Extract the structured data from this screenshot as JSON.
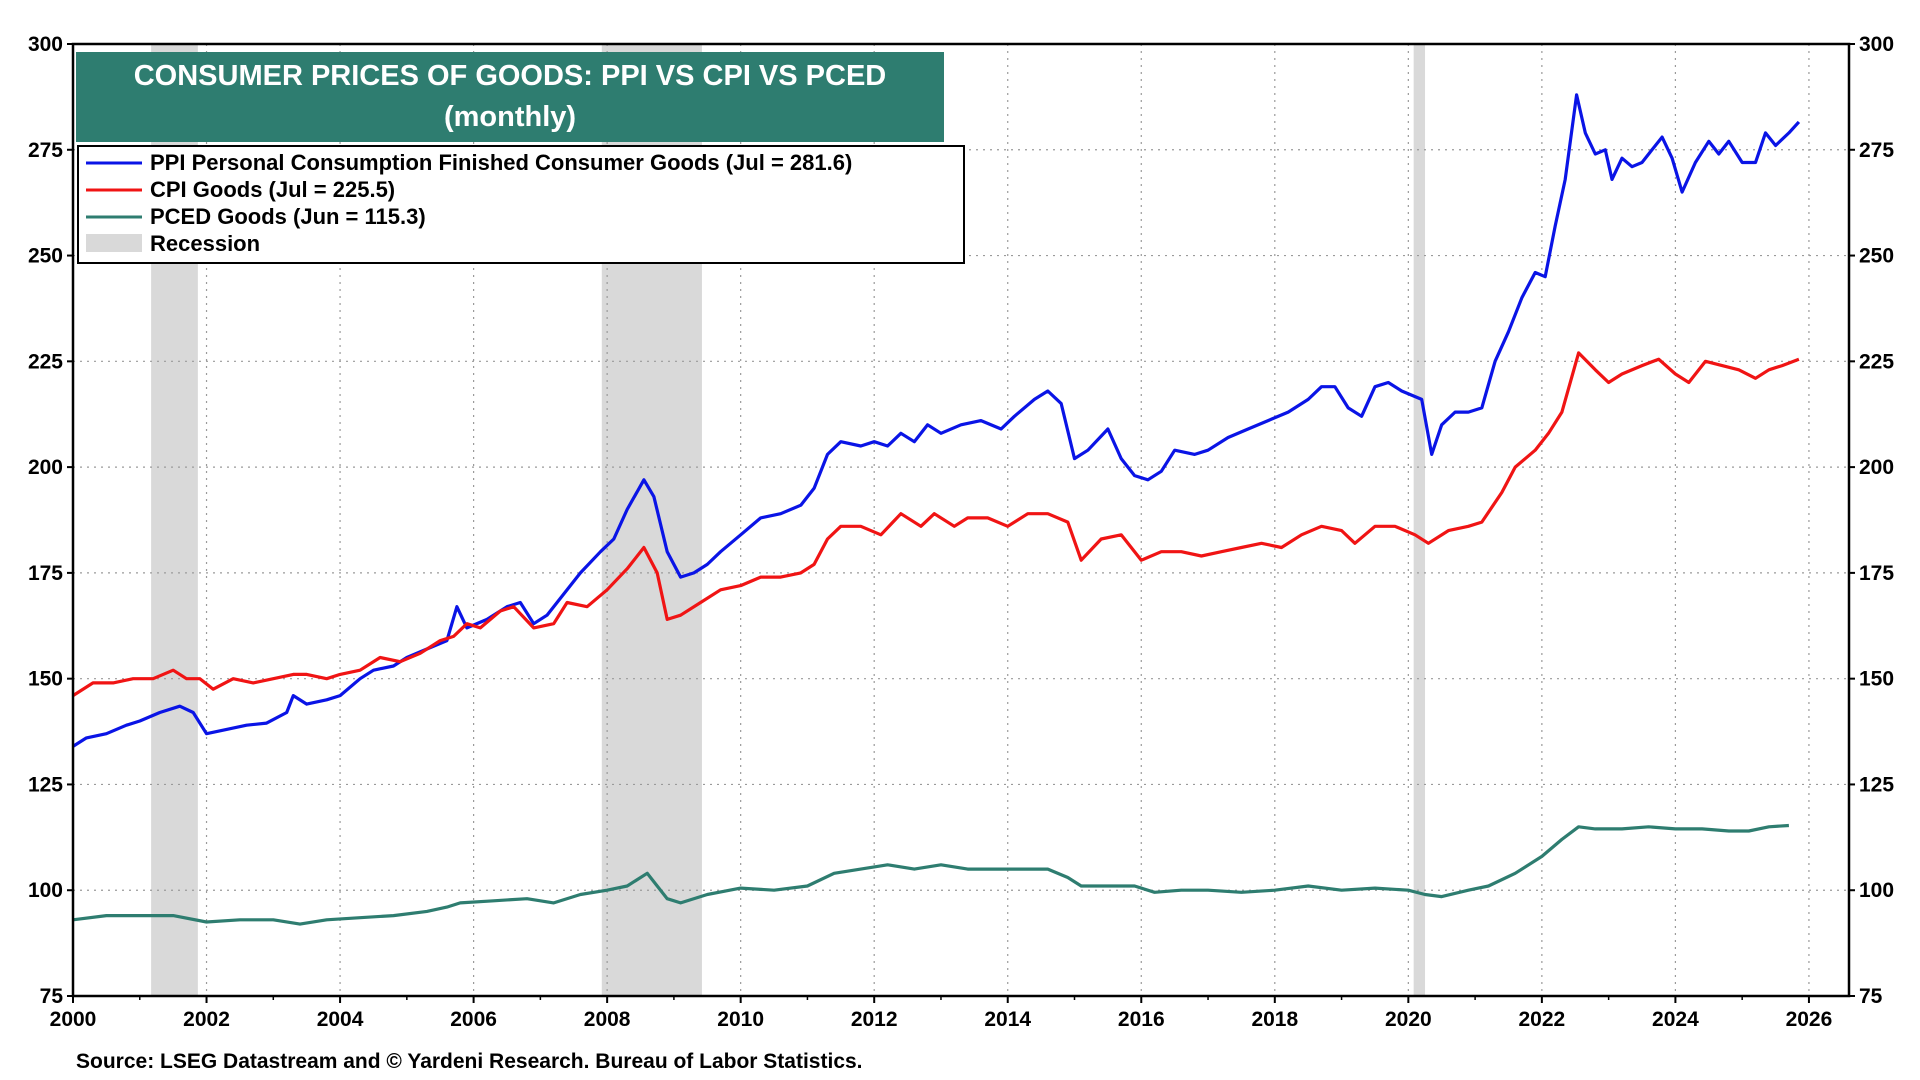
{
  "chart_data": {
    "type": "line",
    "title": "CONSUMER PRICES OF GOODS: PPI VS CPI VS PCED",
    "subtitle": "(monthly)",
    "xlim": [
      2000,
      2026.6
    ],
    "ylim": [
      75,
      300
    ],
    "x_ticks": [
      2000,
      2002,
      2004,
      2006,
      2008,
      2010,
      2012,
      2014,
      2016,
      2018,
      2020,
      2022,
      2024,
      2026
    ],
    "x_tick_labels": [
      "2000",
      "2002",
      "2004",
      "2006",
      "2008",
      "2010",
      "2012",
      "2014",
      "2016",
      "2018",
      "2020",
      "2022",
      "2024",
      "2026"
    ],
    "y_ticks": [
      75,
      100,
      125,
      150,
      175,
      200,
      225,
      250,
      275,
      300
    ],
    "y_tick_labels": [
      "75",
      "100",
      "125",
      "150",
      "175",
      "200",
      "225",
      "250",
      "275",
      "300"
    ],
    "grid": true,
    "legend_position": "top-left",
    "recessions": [
      {
        "start": 2001.17,
        "end": 2001.87
      },
      {
        "start": 2007.92,
        "end": 2009.42
      },
      {
        "start": 2020.08,
        "end": 2020.25
      }
    ],
    "recession_label": "Recession",
    "recession_color": "#d9d9d9",
    "series": [
      {
        "name": "PPI Personal Consumption Finished Consumer Goods (Jul = 281.6)",
        "color": "#0a14e6",
        "points": [
          [
            2000.0,
            134
          ],
          [
            2000.2,
            136
          ],
          [
            2000.5,
            137
          ],
          [
            2000.8,
            139
          ],
          [
            2001.0,
            140
          ],
          [
            2001.3,
            142
          ],
          [
            2001.6,
            143.5
          ],
          [
            2001.8,
            142
          ],
          [
            2002.0,
            137
          ],
          [
            2002.3,
            138
          ],
          [
            2002.6,
            139
          ],
          [
            2002.9,
            139.5
          ],
          [
            2003.2,
            142
          ],
          [
            2003.3,
            146
          ],
          [
            2003.5,
            144
          ],
          [
            2003.8,
            145
          ],
          [
            2004.0,
            146
          ],
          [
            2004.3,
            150
          ],
          [
            2004.5,
            152
          ],
          [
            2004.8,
            153
          ],
          [
            2005.0,
            155
          ],
          [
            2005.3,
            157
          ],
          [
            2005.6,
            159
          ],
          [
            2005.75,
            167
          ],
          [
            2005.9,
            162
          ],
          [
            2006.2,
            164
          ],
          [
            2006.5,
            167
          ],
          [
            2006.7,
            168
          ],
          [
            2006.9,
            163
          ],
          [
            2007.1,
            165
          ],
          [
            2007.4,
            171
          ],
          [
            2007.6,
            175
          ],
          [
            2007.9,
            180
          ],
          [
            2008.1,
            183
          ],
          [
            2008.3,
            190
          ],
          [
            2008.55,
            197
          ],
          [
            2008.7,
            193
          ],
          [
            2008.9,
            180
          ],
          [
            2009.1,
            174
          ],
          [
            2009.3,
            175
          ],
          [
            2009.5,
            177
          ],
          [
            2009.7,
            180
          ],
          [
            2010.0,
            184
          ],
          [
            2010.3,
            188
          ],
          [
            2010.6,
            189
          ],
          [
            2010.9,
            191
          ],
          [
            2011.1,
            195
          ],
          [
            2011.3,
            203
          ],
          [
            2011.5,
            206
          ],
          [
            2011.8,
            205
          ],
          [
            2012.0,
            206
          ],
          [
            2012.2,
            205
          ],
          [
            2012.4,
            208
          ],
          [
            2012.6,
            206
          ],
          [
            2012.8,
            210
          ],
          [
            2013.0,
            208
          ],
          [
            2013.3,
            210
          ],
          [
            2013.6,
            211
          ],
          [
            2013.9,
            209
          ],
          [
            2014.1,
            212
          ],
          [
            2014.4,
            216
          ],
          [
            2014.6,
            218
          ],
          [
            2014.8,
            215
          ],
          [
            2015.0,
            202
          ],
          [
            2015.2,
            204
          ],
          [
            2015.5,
            209
          ],
          [
            2015.7,
            202
          ],
          [
            2015.9,
            198
          ],
          [
            2016.1,
            197
          ],
          [
            2016.3,
            199
          ],
          [
            2016.5,
            204
          ],
          [
            2016.8,
            203
          ],
          [
            2017.0,
            204
          ],
          [
            2017.3,
            207
          ],
          [
            2017.6,
            209
          ],
          [
            2017.9,
            211
          ],
          [
            2018.2,
            213
          ],
          [
            2018.5,
            216
          ],
          [
            2018.7,
            219
          ],
          [
            2018.9,
            219
          ],
          [
            2019.1,
            214
          ],
          [
            2019.3,
            212
          ],
          [
            2019.5,
            219
          ],
          [
            2019.7,
            220
          ],
          [
            2019.9,
            218
          ],
          [
            2020.2,
            216
          ],
          [
            2020.35,
            203
          ],
          [
            2020.5,
            210
          ],
          [
            2020.7,
            213
          ],
          [
            2020.9,
            213
          ],
          [
            2021.1,
            214
          ],
          [
            2021.3,
            225
          ],
          [
            2021.5,
            232
          ],
          [
            2021.7,
            240
          ],
          [
            2021.9,
            246
          ],
          [
            2022.05,
            245
          ],
          [
            2022.2,
            257
          ],
          [
            2022.35,
            268
          ],
          [
            2022.52,
            288
          ],
          [
            2022.65,
            279
          ],
          [
            2022.8,
            274
          ],
          [
            2022.95,
            275
          ],
          [
            2023.05,
            268
          ],
          [
            2023.2,
            273
          ],
          [
            2023.35,
            271
          ],
          [
            2023.5,
            272
          ],
          [
            2023.65,
            275
          ],
          [
            2023.8,
            278
          ],
          [
            2023.95,
            273
          ],
          [
            2024.1,
            265
          ],
          [
            2024.3,
            272
          ],
          [
            2024.5,
            277
          ],
          [
            2024.65,
            274
          ],
          [
            2024.8,
            277
          ],
          [
            2025.0,
            272
          ],
          [
            2025.2,
            272
          ],
          [
            2025.35,
            279
          ],
          [
            2025.5,
            276
          ],
          [
            2025.7,
            279
          ],
          [
            2025.85,
            281.6
          ]
        ]
      },
      {
        "name": "CPI Goods (Jul = 225.5)",
        "color": "#f01414",
        "points": [
          [
            2000.0,
            146
          ],
          [
            2000.3,
            149
          ],
          [
            2000.6,
            149
          ],
          [
            2000.9,
            150
          ],
          [
            2001.2,
            150
          ],
          [
            2001.5,
            152
          ],
          [
            2001.7,
            150
          ],
          [
            2001.9,
            150
          ],
          [
            2002.1,
            147.5
          ],
          [
            2002.4,
            150
          ],
          [
            2002.7,
            149
          ],
          [
            2003.0,
            150
          ],
          [
            2003.3,
            151
          ],
          [
            2003.5,
            151
          ],
          [
            2003.8,
            150
          ],
          [
            2004.0,
            151
          ],
          [
            2004.3,
            152
          ],
          [
            2004.6,
            155
          ],
          [
            2004.9,
            154
          ],
          [
            2005.2,
            156
          ],
          [
            2005.5,
            159
          ],
          [
            2005.7,
            160
          ],
          [
            2005.9,
            163
          ],
          [
            2006.1,
            162
          ],
          [
            2006.4,
            166
          ],
          [
            2006.6,
            167
          ],
          [
            2006.9,
            162
          ],
          [
            2007.2,
            163
          ],
          [
            2007.4,
            168
          ],
          [
            2007.7,
            167
          ],
          [
            2008.0,
            171
          ],
          [
            2008.3,
            176
          ],
          [
            2008.55,
            181
          ],
          [
            2008.75,
            175
          ],
          [
            2008.9,
            164
          ],
          [
            2009.1,
            165
          ],
          [
            2009.4,
            168
          ],
          [
            2009.7,
            171
          ],
          [
            2010.0,
            172
          ],
          [
            2010.3,
            174
          ],
          [
            2010.6,
            174
          ],
          [
            2010.9,
            175
          ],
          [
            2011.1,
            177
          ],
          [
            2011.3,
            183
          ],
          [
            2011.5,
            186
          ],
          [
            2011.8,
            186
          ],
          [
            2012.1,
            184
          ],
          [
            2012.4,
            189
          ],
          [
            2012.7,
            186
          ],
          [
            2012.9,
            189
          ],
          [
            2013.2,
            186
          ],
          [
            2013.4,
            188
          ],
          [
            2013.7,
            188
          ],
          [
            2014.0,
            186
          ],
          [
            2014.3,
            189
          ],
          [
            2014.6,
            189
          ],
          [
            2014.9,
            187
          ],
          [
            2015.1,
            178
          ],
          [
            2015.4,
            183
          ],
          [
            2015.7,
            184
          ],
          [
            2016.0,
            178
          ],
          [
            2016.3,
            180
          ],
          [
            2016.6,
            180
          ],
          [
            2016.9,
            179
          ],
          [
            2017.2,
            180
          ],
          [
            2017.5,
            181
          ],
          [
            2017.8,
            182
          ],
          [
            2018.1,
            181
          ],
          [
            2018.4,
            184
          ],
          [
            2018.7,
            186
          ],
          [
            2019.0,
            185
          ],
          [
            2019.2,
            182
          ],
          [
            2019.5,
            186
          ],
          [
            2019.8,
            186
          ],
          [
            2020.1,
            184
          ],
          [
            2020.3,
            182
          ],
          [
            2020.6,
            185
          ],
          [
            2020.9,
            186
          ],
          [
            2021.1,
            187
          ],
          [
            2021.4,
            194
          ],
          [
            2021.6,
            200
          ],
          [
            2021.9,
            204
          ],
          [
            2022.1,
            208
          ],
          [
            2022.3,
            213
          ],
          [
            2022.55,
            227
          ],
          [
            2022.8,
            223
          ],
          [
            2023.0,
            220
          ],
          [
            2023.2,
            222
          ],
          [
            2023.5,
            224
          ],
          [
            2023.75,
            225.5
          ],
          [
            2024.0,
            222
          ],
          [
            2024.2,
            220
          ],
          [
            2024.45,
            225
          ],
          [
            2024.7,
            224
          ],
          [
            2024.95,
            223
          ],
          [
            2025.2,
            221
          ],
          [
            2025.4,
            223
          ],
          [
            2025.6,
            224
          ],
          [
            2025.85,
            225.5
          ]
        ]
      },
      {
        "name": "PCED Goods (Jun = 115.3)",
        "color": "#2e7d70",
        "points": [
          [
            2000.0,
            93
          ],
          [
            2000.5,
            94
          ],
          [
            2001.0,
            94
          ],
          [
            2001.5,
            94
          ],
          [
            2002.0,
            92.5
          ],
          [
            2002.5,
            93
          ],
          [
            2003.0,
            93
          ],
          [
            2003.4,
            92
          ],
          [
            2003.8,
            93
          ],
          [
            2004.3,
            93.5
          ],
          [
            2004.8,
            94
          ],
          [
            2005.3,
            95
          ],
          [
            2005.6,
            96
          ],
          [
            2005.8,
            97
          ],
          [
            2006.3,
            97.5
          ],
          [
            2006.8,
            98
          ],
          [
            2007.2,
            97
          ],
          [
            2007.6,
            99
          ],
          [
            2008.0,
            100
          ],
          [
            2008.3,
            101
          ],
          [
            2008.6,
            104
          ],
          [
            2008.9,
            98
          ],
          [
            2009.1,
            97
          ],
          [
            2009.5,
            99
          ],
          [
            2010.0,
            100.5
          ],
          [
            2010.5,
            100
          ],
          [
            2011.0,
            101
          ],
          [
            2011.4,
            104
          ],
          [
            2011.8,
            105
          ],
          [
            2012.2,
            106
          ],
          [
            2012.6,
            105
          ],
          [
            2013.0,
            106
          ],
          [
            2013.4,
            105
          ],
          [
            2013.8,
            105
          ],
          [
            2014.2,
            105
          ],
          [
            2014.6,
            105
          ],
          [
            2014.9,
            103
          ],
          [
            2015.1,
            101
          ],
          [
            2015.5,
            101
          ],
          [
            2015.9,
            101
          ],
          [
            2016.2,
            99.5
          ],
          [
            2016.6,
            100
          ],
          [
            2017.0,
            100
          ],
          [
            2017.5,
            99.5
          ],
          [
            2018.0,
            100
          ],
          [
            2018.5,
            101
          ],
          [
            2019.0,
            100
          ],
          [
            2019.5,
            100.5
          ],
          [
            2020.0,
            100
          ],
          [
            2020.25,
            99
          ],
          [
            2020.5,
            98.5
          ],
          [
            2020.9,
            100
          ],
          [
            2021.2,
            101
          ],
          [
            2021.6,
            104
          ],
          [
            2022.0,
            108
          ],
          [
            2022.3,
            112
          ],
          [
            2022.55,
            115
          ],
          [
            2022.8,
            114.5
          ],
          [
            2023.2,
            114.5
          ],
          [
            2023.6,
            115
          ],
          [
            2024.0,
            114.5
          ],
          [
            2024.4,
            114.5
          ],
          [
            2024.8,
            114
          ],
          [
            2025.1,
            114
          ],
          [
            2025.4,
            115
          ],
          [
            2025.7,
            115.3
          ]
        ]
      }
    ],
    "source": "Source: LSEG Datastream and © Yardeni Research. Bureau of Labor Statistics."
  }
}
